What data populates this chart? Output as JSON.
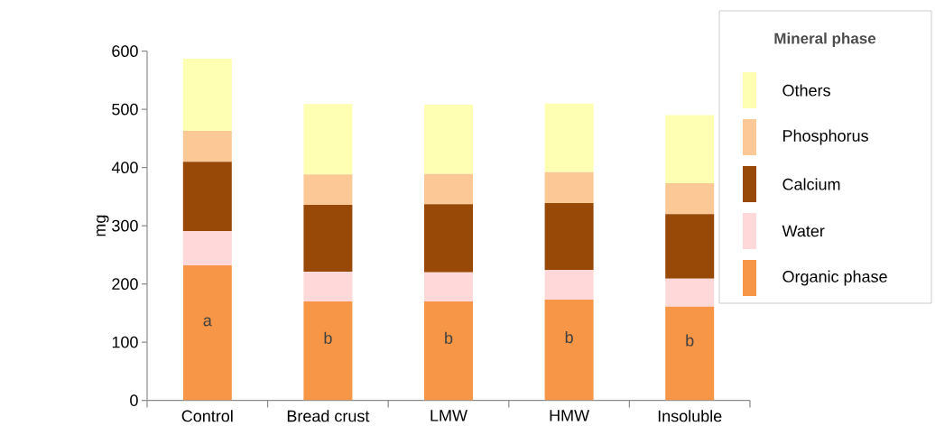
{
  "chart_data": {
    "type": "bar",
    "stacked": true,
    "ylabel": "mg",
    "legend_title": "Mineral phase",
    "legend": "right",
    "categories": [
      "Control",
      "Bread crust",
      "LMW",
      "HMW",
      "Insoluble"
    ],
    "ylim": [
      0,
      600
    ],
    "yticks": [
      0,
      100,
      200,
      300,
      400,
      500,
      600
    ],
    "grid": false,
    "series": [
      {
        "name": "Organic phase",
        "color": "#f79646",
        "values": [
          232,
          170,
          170,
          173,
          161
        ],
        "value_labels": [
          "a",
          "b",
          "b",
          "b",
          "b"
        ]
      },
      {
        "name": "Water",
        "color": "#ffd9d9",
        "values": [
          59,
          51,
          50,
          51,
          48
        ]
      },
      {
        "name": "Calcium",
        "color": "#984807",
        "values": [
          119,
          115,
          117,
          115,
          111
        ]
      },
      {
        "name": "Phosphorus",
        "color": "#fcc895",
        "values": [
          53,
          52,
          52,
          53,
          53
        ]
      },
      {
        "name": "Others",
        "color": "#ffffb3",
        "values": [
          124,
          121,
          119,
          118,
          117
        ]
      }
    ]
  }
}
